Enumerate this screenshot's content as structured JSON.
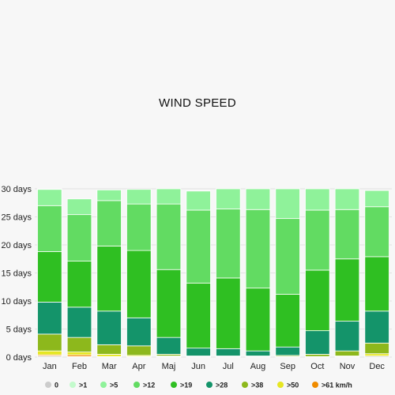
{
  "chart_data": {
    "type": "bar",
    "stacked": true,
    "title": "WIND SPEED",
    "xlabel": "",
    "ylabel": "",
    "ylim": [
      0,
      30
    ],
    "ytick_labels": [
      "0 days",
      "5 days",
      "10 days",
      "15 days",
      "20 days",
      "25 days",
      "30 days"
    ],
    "grid": true,
    "legend_position": "bottom",
    "categories": [
      "Jan",
      "Feb",
      "Mar",
      "Apr",
      "Maj",
      "Jun",
      "Jul",
      "Aug",
      "Sep",
      "Oct",
      "Nov",
      "Dec"
    ],
    "series": [
      {
        "name": "0",
        "color": "#cccccc",
        "values": [
          0.2,
          0.1,
          0.1,
          0.1,
          0.1,
          0.1,
          0.1,
          0.1,
          0.1,
          0.1,
          0.1,
          0.2
        ]
      },
      {
        "name": ">61 km/h",
        "color": "#f08c00",
        "values": [
          0.2,
          0.3,
          0.0,
          0.0,
          0.0,
          0.0,
          0.0,
          0.0,
          0.0,
          0.0,
          0.0,
          0.0
        ]
      },
      {
        "name": ">50",
        "color": "#e6e622",
        "values": [
          0.7,
          0.5,
          0.4,
          0.2,
          0.1,
          0.0,
          0.0,
          0.0,
          0.0,
          0.0,
          0.1,
          0.4
        ]
      },
      {
        "name": ">38",
        "color": "#8db81c",
        "values": [
          3.0,
          2.6,
          1.7,
          1.7,
          0.3,
          0.1,
          0.1,
          0.1,
          0.2,
          0.4,
          0.9,
          1.9
        ]
      },
      {
        "name": ">28",
        "color": "#14946a",
        "values": [
          5.7,
          5.4,
          6.0,
          5.0,
          3.0,
          1.4,
          1.3,
          0.9,
          1.5,
          4.2,
          5.3,
          5.7
        ]
      },
      {
        "name": ">19",
        "color": "#2fbf22",
        "values": [
          9.0,
          8.2,
          11.6,
          12.0,
          12.1,
          11.6,
          12.6,
          11.2,
          9.4,
          10.8,
          11.1,
          9.7
        ]
      },
      {
        "name": ">12",
        "color": "#62db62",
        "values": [
          8.2,
          8.3,
          8.1,
          8.3,
          11.7,
          13.0,
          12.3,
          14.0,
          13.5,
          10.7,
          8.8,
          8.9
        ]
      },
      {
        "name": ">5",
        "color": "#8ff29a",
        "values": [
          2.9,
          2.8,
          1.9,
          2.6,
          2.7,
          3.4,
          3.6,
          3.7,
          5.3,
          3.8,
          3.7,
          2.9
        ]
      },
      {
        "name": ">1",
        "color": "#c3facc",
        "values": [
          0.1,
          0.0,
          0.0,
          0.0,
          0.0,
          0.0,
          0.0,
          0.0,
          0.0,
          0.0,
          0.0,
          0.0
        ]
      }
    ],
    "legend_order": [
      "0",
      ">1",
      ">5",
      ">12",
      ">19",
      ">28",
      ">38",
      ">50",
      ">61 km/h"
    ]
  }
}
